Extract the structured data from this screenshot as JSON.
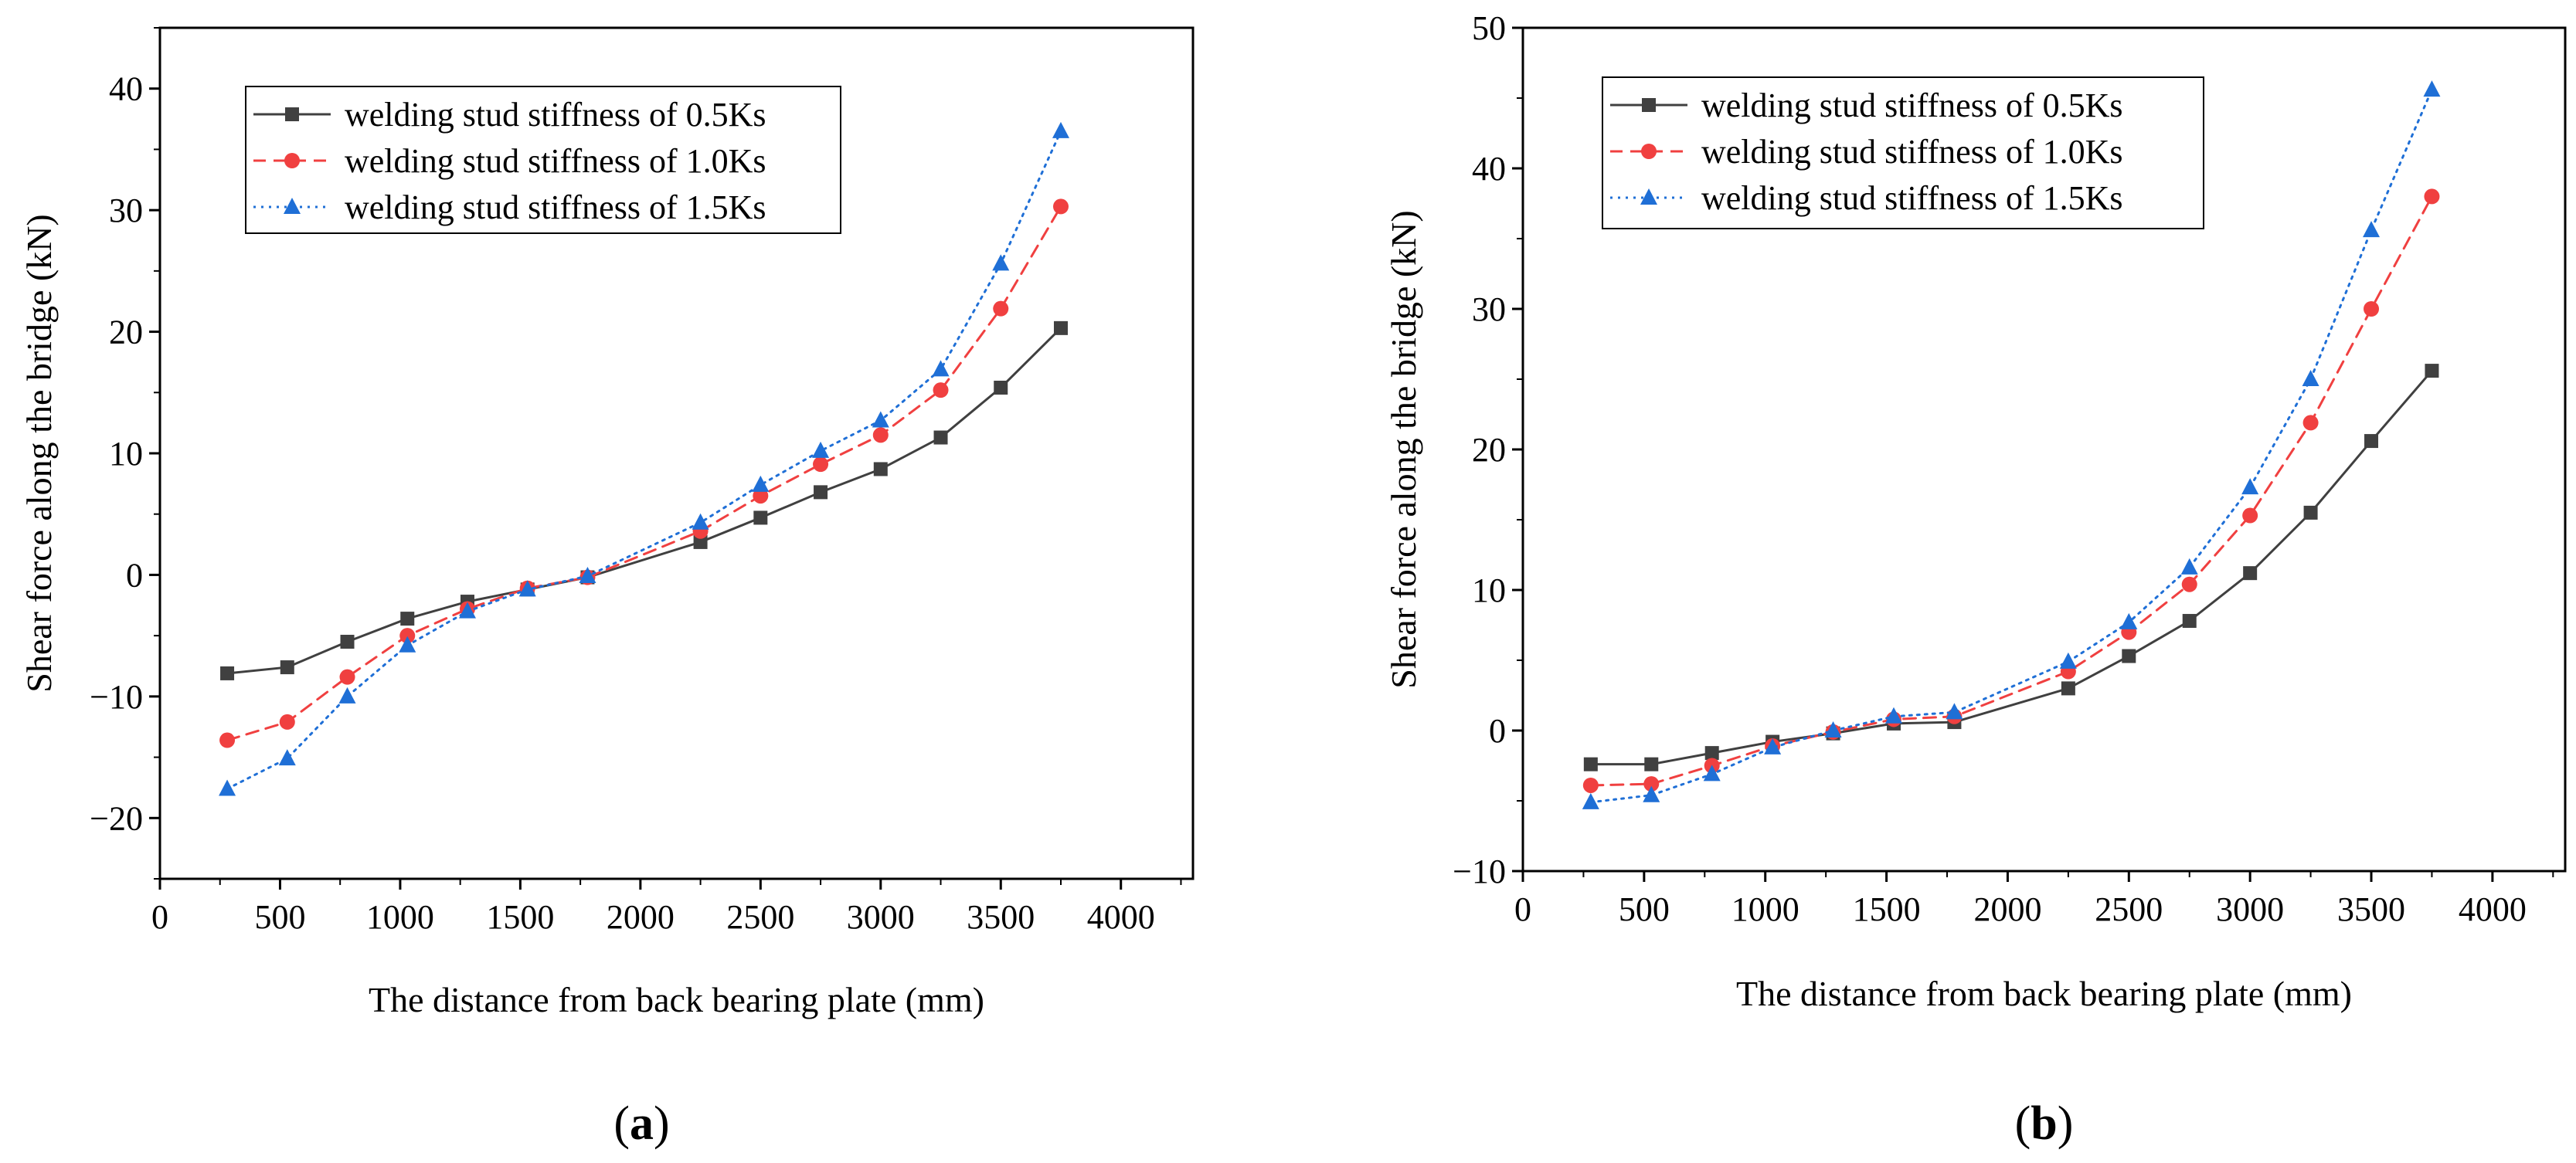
{
  "chart_data": [
    {
      "type": "line",
      "panel_label": "a",
      "xlabel": "The distance from back bearing plate (mm)",
      "ylabel": "Shear force along the bridge (kN)",
      "xlim": [
        0,
        4300
      ],
      "ylim": [
        -25,
        45
      ],
      "xticks": [
        0,
        500,
        1000,
        1500,
        2000,
        2500,
        3000,
        3500,
        4000
      ],
      "yticks": [
        -20,
        -10,
        0,
        10,
        20,
        30,
        40
      ],
      "grid": false,
      "legend_position": "top-left",
      "x": [
        280,
        530,
        780,
        1030,
        1280,
        1530,
        1780,
        2250,
        2500,
        2750,
        3000,
        3250,
        3500,
        3750
      ],
      "series": [
        {
          "name": "welding stud stiffness of 0.5Ks",
          "color": "#404040",
          "marker": "square",
          "dash": "solid",
          "values": [
            -8.1,
            -7.6,
            -5.5,
            -3.6,
            -2.2,
            -1.2,
            -0.2,
            2.7,
            4.7,
            6.8,
            8.7,
            11.3,
            15.4,
            20.3
          ]
        },
        {
          "name": "welding stud stiffness of 1.0Ks",
          "color": "#f04040",
          "marker": "circle",
          "dash": "dashed",
          "values": [
            -13.6,
            -12.1,
            -8.4,
            -5.0,
            -2.8,
            -1.1,
            -0.2,
            3.6,
            6.5,
            9.1,
            11.5,
            15.2,
            21.9,
            30.3
          ]
        },
        {
          "name": "welding stud stiffness of 1.5Ks",
          "color": "#1f6fd6",
          "marker": "triangle",
          "dash": "dotted",
          "values": [
            -17.6,
            -15.1,
            -10.0,
            -5.8,
            -3.0,
            -1.2,
            -0.1,
            4.3,
            7.4,
            10.2,
            12.7,
            16.9,
            25.6,
            36.5
          ]
        }
      ]
    },
    {
      "type": "line",
      "panel_label": "b",
      "xlabel": "The distance from back bearing plate (mm)",
      "ylabel": "Shear force along the bridge (kN)",
      "xlim": [
        0,
        4300
      ],
      "ylim": [
        -10,
        50
      ],
      "xticks": [
        0,
        500,
        1000,
        1500,
        2000,
        2500,
        3000,
        3500,
        4000
      ],
      "yticks": [
        -10,
        0,
        10,
        20,
        30,
        40,
        50
      ],
      "grid": false,
      "legend_position": "top-left",
      "x": [
        280,
        530,
        780,
        1030,
        1280,
        1530,
        1780,
        2250,
        2500,
        2750,
        3000,
        3250,
        3500,
        3750
      ],
      "series": [
        {
          "name": "welding stud stiffness of 0.5Ks",
          "color": "#404040",
          "marker": "square",
          "dash": "solid",
          "values": [
            -2.4,
            -2.4,
            -1.6,
            -0.8,
            -0.2,
            0.5,
            0.6,
            3.0,
            5.3,
            7.8,
            11.2,
            15.5,
            20.6,
            25.6
          ]
        },
        {
          "name": "welding stud stiffness of 1.0Ks",
          "color": "#f04040",
          "marker": "circle",
          "dash": "dashed",
          "values": [
            -3.9,
            -3.8,
            -2.5,
            -1.1,
            -0.1,
            0.8,
            1.0,
            4.2,
            7.0,
            10.4,
            15.3,
            21.9,
            30.0,
            38.0
          ]
        },
        {
          "name": "welding stud stiffness of 1.5Ks",
          "color": "#1f6fd6",
          "marker": "triangle",
          "dash": "dotted",
          "values": [
            -5.1,
            -4.6,
            -3.1,
            -1.2,
            0.0,
            1.0,
            1.3,
            4.9,
            7.7,
            11.6,
            17.3,
            25.0,
            35.6,
            45.6
          ]
        }
      ]
    }
  ]
}
